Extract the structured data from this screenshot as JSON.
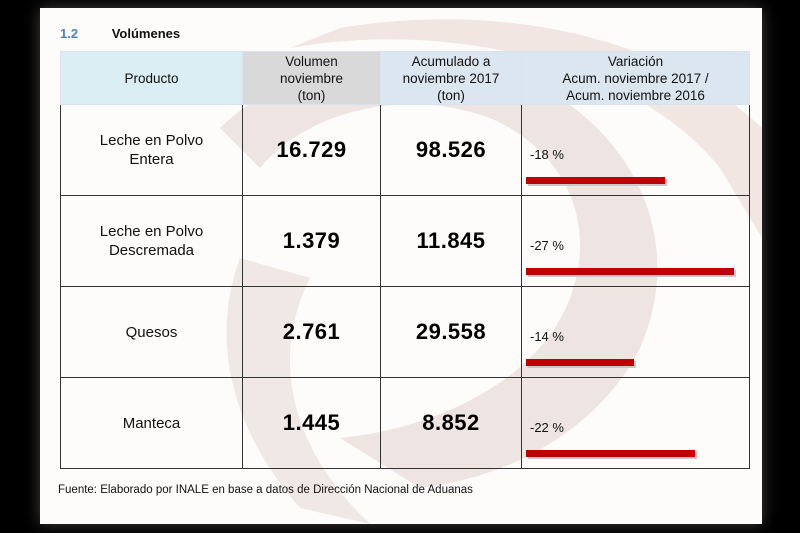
{
  "section": {
    "number": "1.2",
    "title": "Volúmenes"
  },
  "table": {
    "headers": {
      "producto": "Producto",
      "volumen": [
        "Volumen",
        "noviembre",
        "(ton)"
      ],
      "acumulado": [
        "Acumulado a",
        "noviembre 2017",
        "(ton)"
      ],
      "variacion": [
        "Variación",
        "Acum. noviembre 2017 /",
        "Acum. noviembre 2016"
      ]
    },
    "rows": [
      {
        "producto": [
          "Leche en Polvo",
          "Entera"
        ],
        "volumen": "16.729",
        "acumulado": "98.526",
        "variacion_label": "-18 %",
        "variacion_pct": -18
      },
      {
        "producto": [
          "Leche en Polvo",
          "Descremada"
        ],
        "volumen": "1.379",
        "acumulado": "11.845",
        "variacion_label": "-27 %",
        "variacion_pct": -27
      },
      {
        "producto": [
          "Quesos"
        ],
        "volumen": "2.761",
        "acumulado": "29.558",
        "variacion_label": "-14 %",
        "variacion_pct": -14
      },
      {
        "producto": [
          "Manteca"
        ],
        "volumen": "1.445",
        "acumulado": "8.852",
        "variacion_label": "-22 %",
        "variacion_pct": -22
      }
    ]
  },
  "source": "Fuente: Elaborado por INALE en base a datos de Dirección Nacional de Aduanas",
  "colors": {
    "bar": "#c00000",
    "section_number": "#4f81bd",
    "header_producto": "#daeef3",
    "header_volumen": "#d9d9d9",
    "header_other": "#dce6f1"
  }
}
